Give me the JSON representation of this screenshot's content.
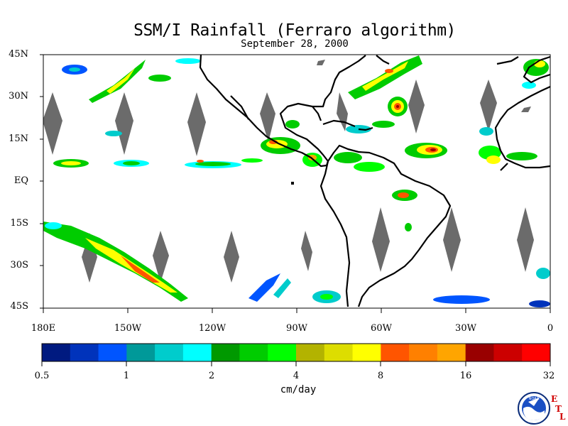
{
  "title": "SSM/I Rainfall (Ferraro algorithm)",
  "subtitle": "September 28, 2000",
  "lat_labels": [
    "45N",
    "30N",
    "15N",
    "EQ",
    "15S",
    "30S",
    "45S"
  ],
  "lon_labels": [
    "180E",
    "150W",
    "120W",
    "90W",
    "60W",
    "30W",
    "0"
  ],
  "colorbar": {
    "units": "cm/day",
    "tick_labels": [
      "0.5",
      "1",
      "2",
      "4",
      "8",
      "16",
      "32"
    ],
    "colors": [
      "#001a80",
      "#0033bb",
      "#0055ff",
      "#009999",
      "#00cccc",
      "#00ffff",
      "#009900",
      "#00cc00",
      "#00ff00",
      "#b3b300",
      "#dddd00",
      "#ffff00",
      "#ff5500",
      "#ff8000",
      "#ffa500",
      "#990000",
      "#cc0000",
      "#ff0000"
    ]
  },
  "logos": {
    "noaa": "NOAA",
    "etl": [
      "E",
      "T",
      "L"
    ]
  }
}
